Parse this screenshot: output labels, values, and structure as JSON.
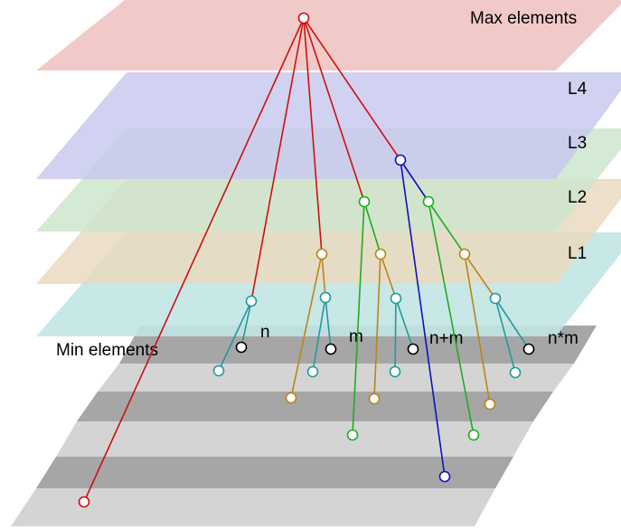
{
  "labels": {
    "max_elements": "Max elements",
    "min_elements": "Min elements",
    "layers": [
      "L4",
      "L3",
      "L2",
      "L1"
    ],
    "bins": [
      "n",
      "m",
      "n+m",
      "n*m"
    ]
  },
  "colors": {
    "layer_max": "#f2c9c9",
    "layer_l4": "#c9c9ef",
    "layer_l3": "#cce6cc",
    "layer_l2": "#ead9bf",
    "layer_l1": "#c2e4e4",
    "base_light": "#d4d4d4",
    "base_dark": "#a6a6a6",
    "red": "#cc1111",
    "blue": "#1111bb",
    "green": "#22aa22",
    "gold": "#b8861a",
    "teal": "#22999a",
    "black": "#000000"
  }
}
